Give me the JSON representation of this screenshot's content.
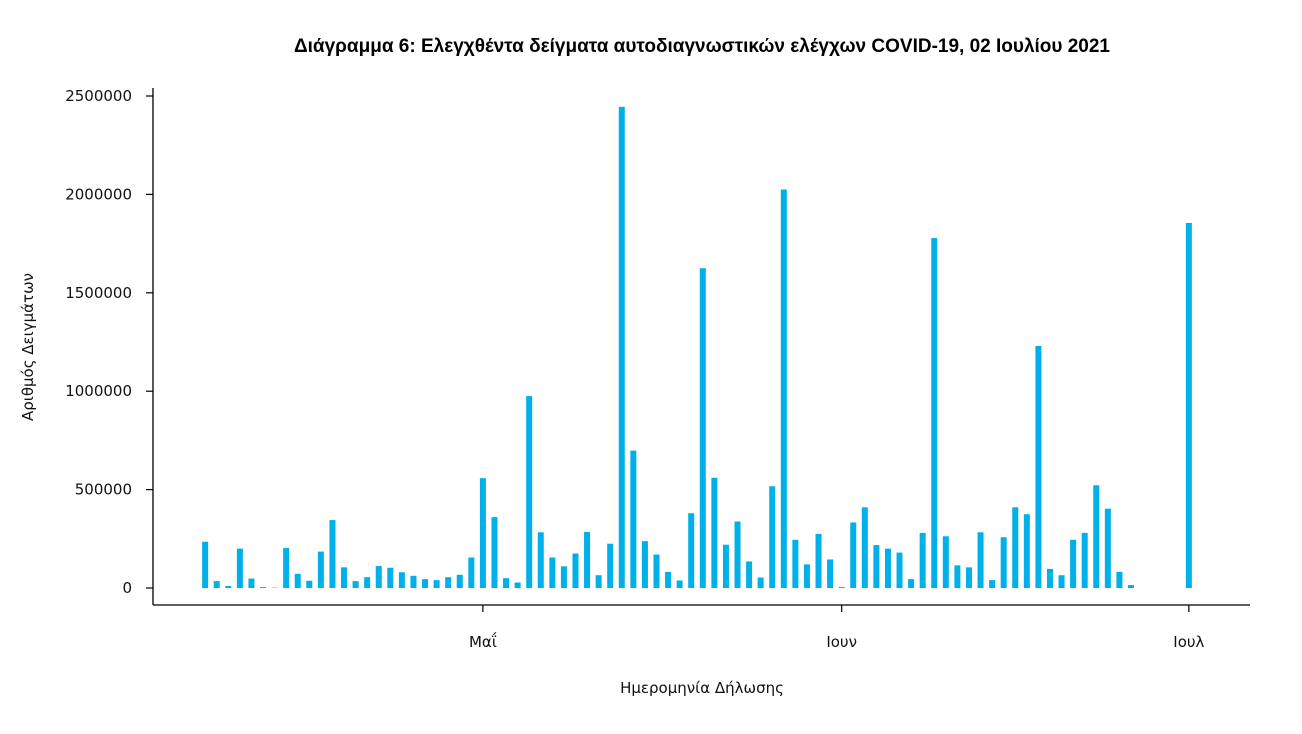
{
  "chart_data": {
    "type": "bar",
    "title": "Διάγραμμα 6: Ελεγχθέντα δείγματα αυτοδιαγνωστικών ελέγχων COVID-19, 02 Ιουλίου 2021",
    "xlabel": "Ημερομηνία Δήλωσης",
    "ylabel": "Αριθμός Δειγμάτων",
    "ylim": [
      0,
      2500000
    ],
    "y_ticks": [
      0,
      500000,
      1000000,
      1500000,
      2000000,
      2500000
    ],
    "y_tick_labels": [
      "0",
      "500000",
      "1000000",
      "1500000",
      "2000000",
      "2500000"
    ],
    "x_ticks": [
      {
        "date": "2021-05-01",
        "label": "Μαΐ"
      },
      {
        "date": "2021-06-01",
        "label": "Ιουν"
      },
      {
        "date": "2021-07-01",
        "label": "Ιουλ"
      }
    ],
    "x_range": [
      "2021-04-05",
      "2021-07-03"
    ],
    "color": "#00b0e8",
    "dates": [
      "2021-04-07",
      "2021-04-08",
      "2021-04-09",
      "2021-04-10",
      "2021-04-11",
      "2021-04-12",
      "2021-04-13",
      "2021-04-14",
      "2021-04-15",
      "2021-04-16",
      "2021-04-17",
      "2021-04-18",
      "2021-04-19",
      "2021-04-20",
      "2021-04-21",
      "2021-04-22",
      "2021-04-23",
      "2021-04-24",
      "2021-04-25",
      "2021-04-26",
      "2021-04-27",
      "2021-04-28",
      "2021-04-29",
      "2021-04-30",
      "2021-05-01",
      "2021-05-02",
      "2021-05-03",
      "2021-05-04",
      "2021-05-05",
      "2021-05-06",
      "2021-05-07",
      "2021-05-08",
      "2021-05-09",
      "2021-05-10",
      "2021-05-11",
      "2021-05-12",
      "2021-05-13",
      "2021-05-14",
      "2021-05-15",
      "2021-05-16",
      "2021-05-17",
      "2021-05-18",
      "2021-05-19",
      "2021-05-20",
      "2021-05-21",
      "2021-05-22",
      "2021-05-23",
      "2021-05-24",
      "2021-05-25",
      "2021-05-26",
      "2021-05-27",
      "2021-05-28",
      "2021-05-29",
      "2021-05-30",
      "2021-05-31",
      "2021-06-01",
      "2021-06-02",
      "2021-06-03",
      "2021-06-04",
      "2021-06-05",
      "2021-06-06",
      "2021-06-07",
      "2021-06-08",
      "2021-06-09",
      "2021-06-10",
      "2021-06-11",
      "2021-06-12",
      "2021-06-13",
      "2021-06-14",
      "2021-06-15",
      "2021-06-16",
      "2021-06-17",
      "2021-06-18",
      "2021-06-19",
      "2021-06-20",
      "2021-06-21",
      "2021-06-22",
      "2021-06-23",
      "2021-06-24",
      "2021-06-25",
      "2021-06-26",
      "2021-06-27",
      "2021-06-28",
      "2021-06-29",
      "2021-06-30",
      "2021-07-01"
    ],
    "values": [
      235000,
      35000,
      10000,
      200000,
      48000,
      5000,
      2000,
      203000,
      72000,
      37000,
      185000,
      345000,
      105000,
      35000,
      55000,
      112000,
      103000,
      80000,
      62000,
      45000,
      40000,
      55000,
      67000,
      155000,
      558000,
      360000,
      50000,
      28000,
      975000,
      283000,
      155000,
      110000,
      175000,
      285000,
      65000,
      225000,
      2445000,
      698000,
      238000,
      170000,
      82000,
      38000,
      380000,
      1625000,
      560000,
      220000,
      338000,
      135000,
      53000,
      517000,
      2025000,
      245000,
      120000,
      275000,
      145000,
      5000,
      333000,
      410000,
      218000,
      200000,
      180000,
      45000,
      280000,
      1778000,
      263000,
      115000,
      105000,
      283000,
      40000,
      258000,
      410000,
      375000,
      1230000,
      97000,
      65000,
      245000,
      280000,
      522000,
      403000,
      82000,
      15000,
      0,
      0,
      0,
      0,
      1855000
    ]
  }
}
